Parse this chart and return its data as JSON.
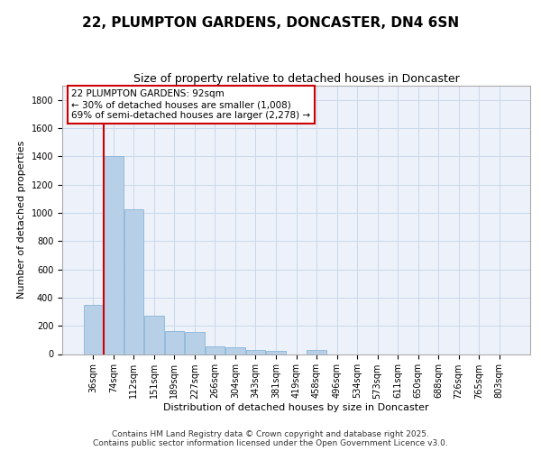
{
  "title": "22, PLUMPTON GARDENS, DONCASTER, DN4 6SN",
  "subtitle": "Size of property relative to detached houses in Doncaster",
  "xlabel": "Distribution of detached houses by size in Doncaster",
  "ylabel": "Number of detached properties",
  "categories": [
    "36sqm",
    "74sqm",
    "112sqm",
    "151sqm",
    "189sqm",
    "227sqm",
    "266sqm",
    "304sqm",
    "343sqm",
    "381sqm",
    "419sqm",
    "458sqm",
    "496sqm",
    "534sqm",
    "573sqm",
    "611sqm",
    "650sqm",
    "688sqm",
    "726sqm",
    "765sqm",
    "803sqm"
  ],
  "values": [
    350,
    1400,
    1025,
    270,
    160,
    155,
    55,
    50,
    30,
    25,
    0,
    30,
    0,
    0,
    0,
    0,
    0,
    0,
    0,
    0,
    0
  ],
  "bar_color": "#b8cfe8",
  "bar_edge_color": "#7aadd4",
  "grid_color": "#c8d8ea",
  "background_color": "#edf2fa",
  "vline_color": "#cc0000",
  "annotation_text": "22 PLUMPTON GARDENS: 92sqm\n← 30% of detached houses are smaller (1,008)\n69% of semi-detached houses are larger (2,278) →",
  "annotation_box_color": "#ffffff",
  "annotation_box_edge": "#cc0000",
  "footer": "Contains HM Land Registry data © Crown copyright and database right 2025.\nContains public sector information licensed under the Open Government Licence v3.0.",
  "ylim": [
    0,
    1900
  ],
  "yticks": [
    0,
    200,
    400,
    600,
    800,
    1000,
    1200,
    1400,
    1600,
    1800
  ],
  "title_fontsize": 11,
  "subtitle_fontsize": 9,
  "xlabel_fontsize": 8,
  "ylabel_fontsize": 8,
  "tick_fontsize": 7,
  "annotation_fontsize": 7.5,
  "footer_fontsize": 6.5
}
